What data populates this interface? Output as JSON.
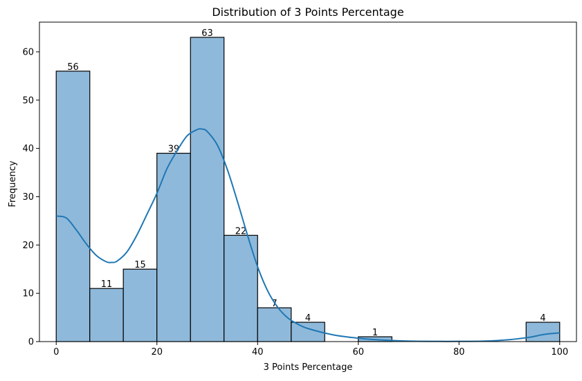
{
  "chart_data": {
    "type": "bar",
    "title": "Distribution of 3 Points Percentage",
    "xlabel": "3 Points Percentage",
    "ylabel": "Frequency",
    "xlim": [
      -3.33,
      103.33
    ],
    "ylim": [
      0,
      66.15
    ],
    "xticks": [
      0,
      20,
      40,
      60,
      80,
      100
    ],
    "yticks": [
      0,
      10,
      20,
      30,
      40,
      50,
      60
    ],
    "bins": [
      {
        "start": 0.0,
        "end": 6.67,
        "value": 56,
        "label": "56"
      },
      {
        "start": 6.67,
        "end": 13.33,
        "value": 11,
        "label": "11"
      },
      {
        "start": 13.33,
        "end": 20.0,
        "value": 15,
        "label": "15"
      },
      {
        "start": 20.0,
        "end": 26.67,
        "value": 39,
        "label": "39"
      },
      {
        "start": 26.67,
        "end": 33.33,
        "value": 63,
        "label": "63"
      },
      {
        "start": 33.33,
        "end": 40.0,
        "value": 22,
        "label": "22"
      },
      {
        "start": 40.0,
        "end": 46.67,
        "value": 7,
        "label": "7"
      },
      {
        "start": 46.67,
        "end": 53.33,
        "value": 4,
        "label": "4"
      },
      {
        "start": 53.33,
        "end": 60.0,
        "value": 0,
        "label": ""
      },
      {
        "start": 60.0,
        "end": 66.67,
        "value": 1,
        "label": "1"
      },
      {
        "start": 66.67,
        "end": 73.33,
        "value": 0,
        "label": ""
      },
      {
        "start": 73.33,
        "end": 80.0,
        "value": 0,
        "label": ""
      },
      {
        "start": 80.0,
        "end": 86.67,
        "value": 0,
        "label": ""
      },
      {
        "start": 86.67,
        "end": 93.33,
        "value": 0,
        "label": ""
      },
      {
        "start": 93.33,
        "end": 100.0,
        "value": 4,
        "label": "4"
      }
    ],
    "kde": {
      "x": [
        0,
        2,
        4,
        6,
        8,
        10,
        11,
        12,
        14,
        16,
        18,
        20,
        22,
        24,
        26,
        28,
        29,
        30,
        32,
        34,
        36,
        38,
        40,
        42,
        44,
        46,
        48,
        50,
        55,
        60,
        65,
        70,
        75,
        80,
        85,
        90,
        94,
        97,
        100
      ],
      "y": [
        26,
        25.6,
        23.1,
        20.2,
        17.8,
        16.5,
        16.4,
        16.6,
        18.5,
        22,
        26.3,
        30.7,
        35.8,
        39.5,
        42.6,
        43.9,
        44,
        43.5,
        40.7,
        35.6,
        29,
        22,
        15.5,
        10.5,
        7.1,
        4.9,
        3.6,
        2.7,
        1.4,
        0.7,
        0.3,
        0.1,
        0.05,
        0.05,
        0.1,
        0.4,
        0.9,
        1.5,
        1.8
      ]
    },
    "colors": {
      "bar_fill": "#8fb9da",
      "bar_edge": "#000000",
      "kde_line": "#1f77b4"
    },
    "grid": false,
    "legend": "none"
  }
}
